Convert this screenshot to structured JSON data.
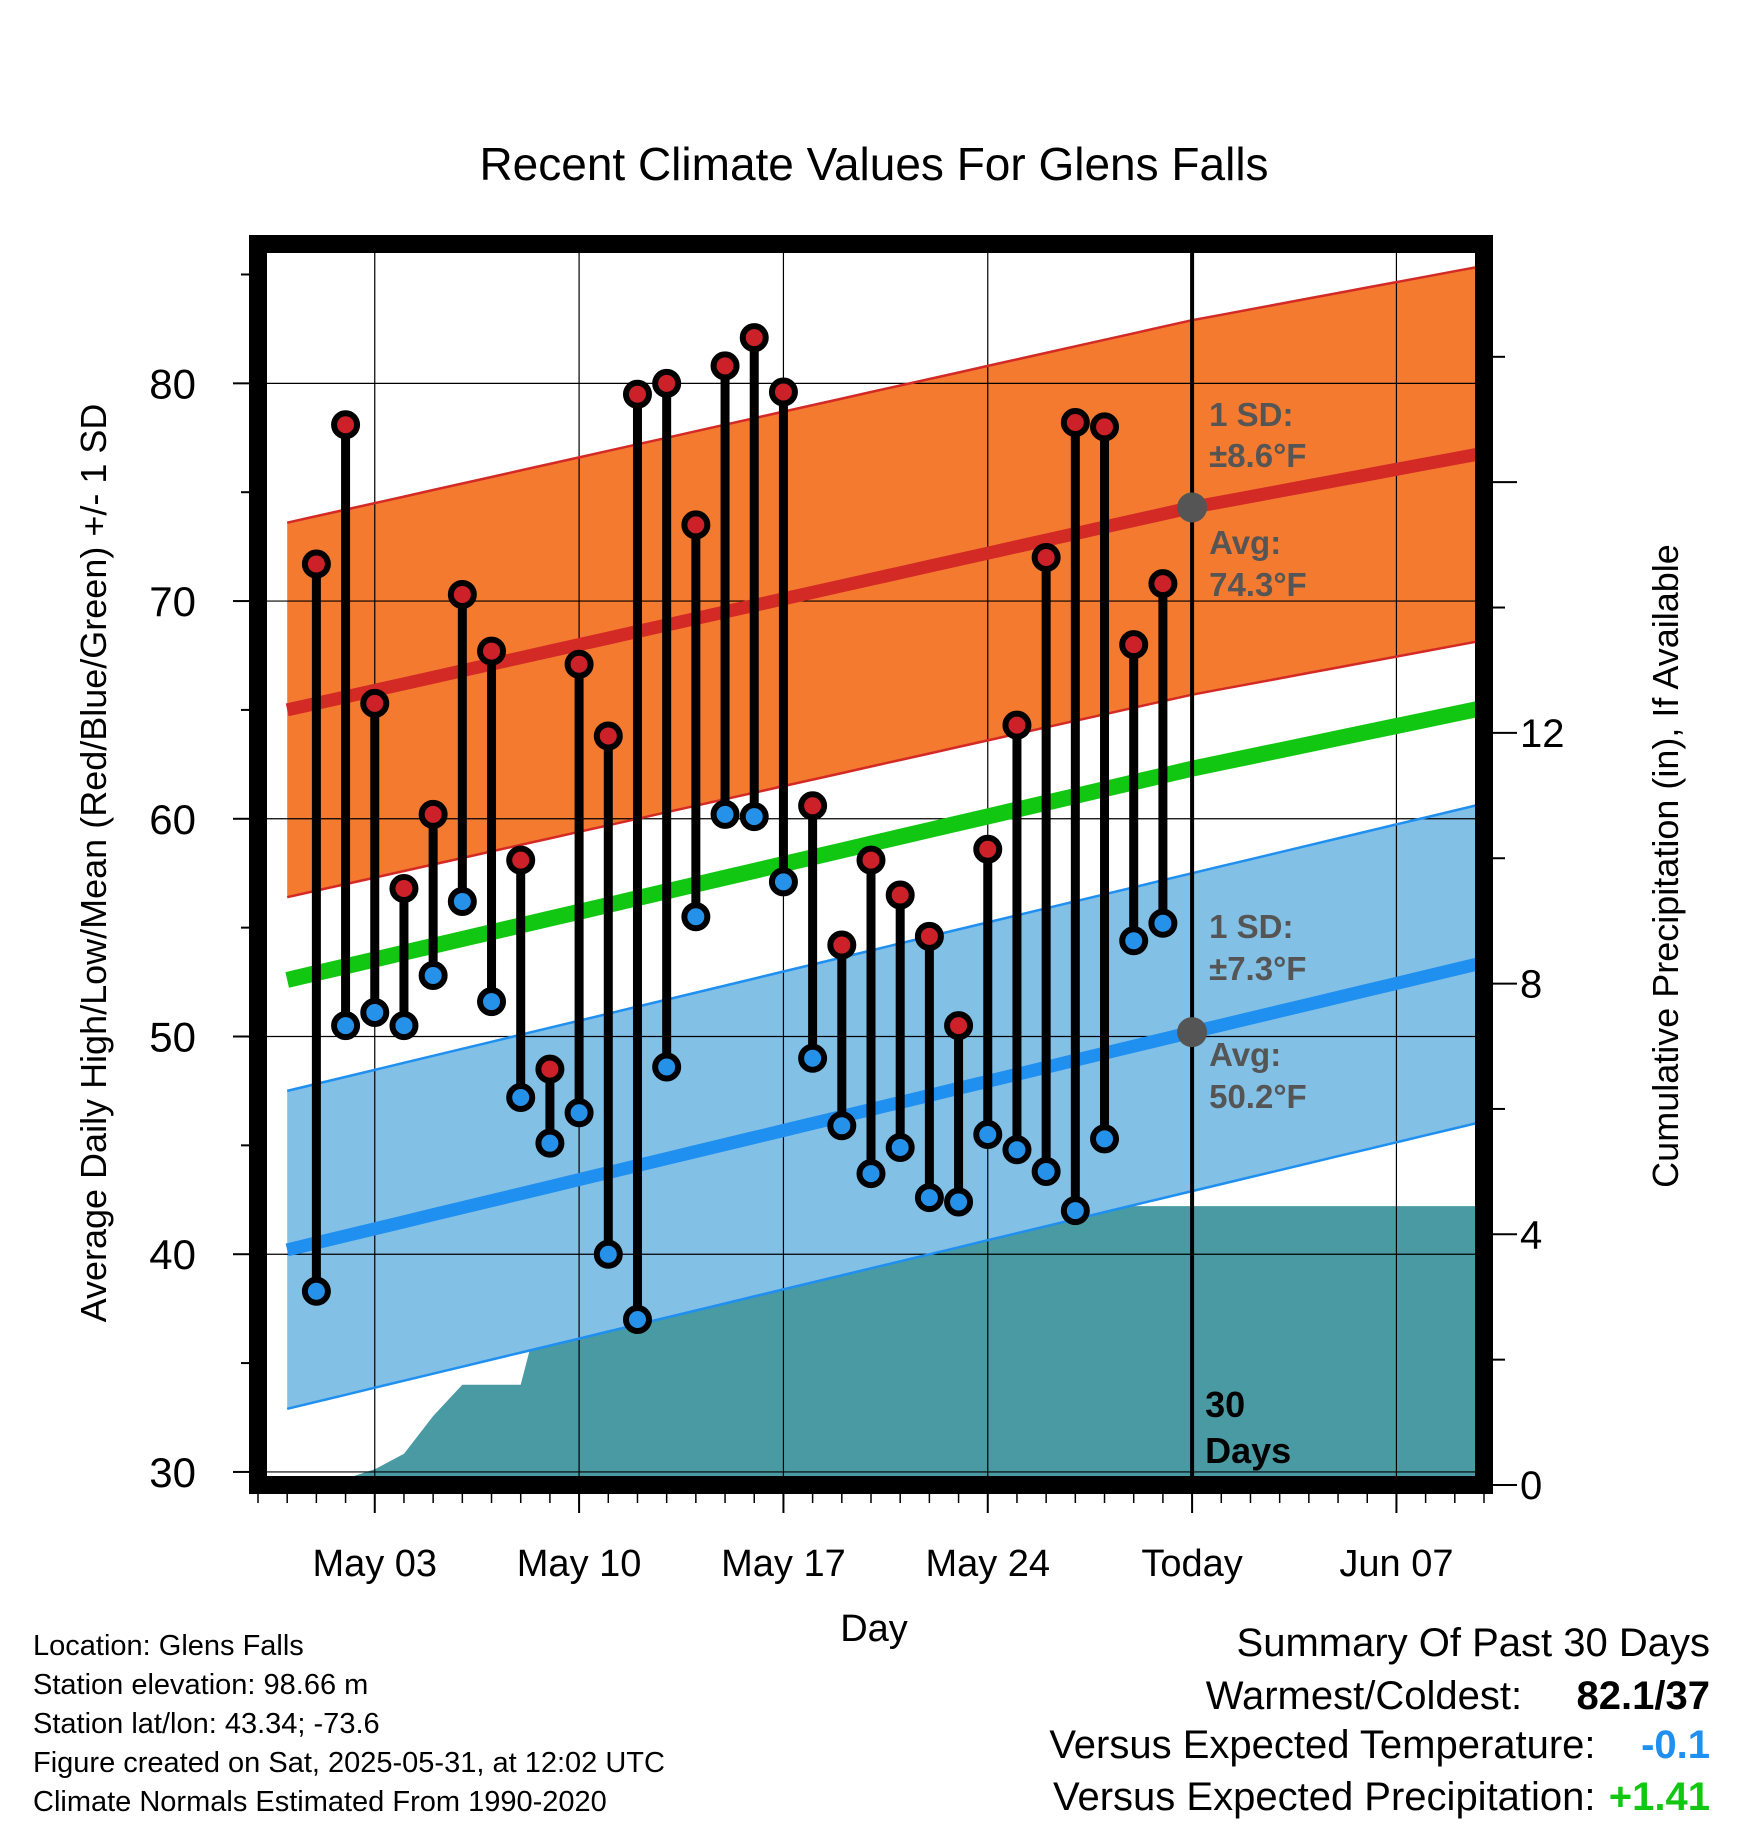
{
  "chart_data": {
    "type": "line",
    "title": "Recent Climate Values For Glens Falls",
    "xlabel": "Day",
    "ylabel": "Average Daily High/Low/Mean (Red/Blue/Green) +/- 1 SD",
    "ylabel_right": "Cumulative Precipitation (in), If Available",
    "ylim": [
      29.4,
      86.4
    ],
    "y_ticks": [
      30,
      40,
      50,
      60,
      70,
      80
    ],
    "xlim": [
      "2025-04-29",
      "2025-06-10"
    ],
    "x_tick_dates": [
      "2025-05-03",
      "2025-05-10",
      "2025-05-17",
      "2025-05-24",
      "2025-05-31",
      "2025-06-07"
    ],
    "x_tick_labels": [
      "May 03",
      "May 10",
      "May 17",
      "May 24",
      "Today",
      "Jun 07"
    ],
    "y2lim": [
      0,
      19.8
    ],
    "y2_ticks": [
      0,
      4,
      8,
      12
    ],
    "grid": true,
    "today_date": "2025-05-31",
    "today_window_label": [
      "30",
      "Days"
    ],
    "colors": {
      "high_band": "#f47a30",
      "high_line": "#d32a25",
      "low_band": "#82c0e6",
      "low_line": "#1f8ff0",
      "mean_line": "#12c712",
      "precip": "#4a9aa4",
      "high_dot": "#cc2128",
      "low_dot": "#2591e8",
      "marker": "#555555"
    },
    "normals": {
      "dates": [
        "2025-04-30",
        "2025-05-31",
        "2025-06-10"
      ],
      "high_avg": [
        65.0,
        74.3,
        76.8
      ],
      "high_sd": 8.6,
      "low_avg": [
        40.2,
        50.2,
        53.4
      ],
      "low_sd": 7.3,
      "mean_avg": [
        52.6,
        62.3,
        65.1
      ]
    },
    "annotations": {
      "high_sd_label": "1 SD:",
      "high_sd_value": "±8.6°F",
      "high_avg_label": "Avg:",
      "high_avg_value": "74.3°F",
      "low_sd_label": "1 SD:",
      "low_sd_value": "±7.3°F",
      "low_avg_label": "Avg:",
      "low_avg_value": "50.2°F"
    },
    "daily": {
      "dates": [
        "2025-05-01",
        "2025-05-02",
        "2025-05-03",
        "2025-05-04",
        "2025-05-05",
        "2025-05-06",
        "2025-05-07",
        "2025-05-08",
        "2025-05-09",
        "2025-05-10",
        "2025-05-11",
        "2025-05-12",
        "2025-05-13",
        "2025-05-14",
        "2025-05-15",
        "2025-05-16",
        "2025-05-17",
        "2025-05-18",
        "2025-05-19",
        "2025-05-20",
        "2025-05-21",
        "2025-05-22",
        "2025-05-23",
        "2025-05-24",
        "2025-05-25",
        "2025-05-26",
        "2025-05-27",
        "2025-05-28",
        "2025-05-29",
        "2025-05-30"
      ],
      "high": [
        71.7,
        78.1,
        65.3,
        56.8,
        60.2,
        70.3,
        67.7,
        58.1,
        48.5,
        67.1,
        63.8,
        79.5,
        80.0,
        73.5,
        80.8,
        82.1,
        79.6,
        60.6,
        54.2,
        58.1,
        56.5,
        54.6,
        50.5,
        58.6,
        64.3,
        72.0,
        78.2,
        78.0,
        68.0,
        70.8
      ],
      "low": [
        38.3,
        50.5,
        51.1,
        50.5,
        52.8,
        56.2,
        51.6,
        47.2,
        45.1,
        46.5,
        40.0,
        37.0,
        48.6,
        55.5,
        60.2,
        60.1,
        57.1,
        49.0,
        45.9,
        43.7,
        44.9,
        42.6,
        42.4,
        45.5,
        44.8,
        43.8,
        42.0,
        45.3,
        54.4,
        55.2
      ]
    },
    "precip": {
      "dates": [
        "2025-04-30",
        "2025-05-01",
        "2025-05-02",
        "2025-05-03",
        "2025-05-04",
        "2025-05-05",
        "2025-05-06",
        "2025-05-07",
        "2025-05-08",
        "2025-05-09",
        "2025-05-10",
        "2025-05-11",
        "2025-05-12",
        "2025-05-13",
        "2025-05-14",
        "2025-05-15",
        "2025-05-16",
        "2025-05-17",
        "2025-05-18",
        "2025-05-19",
        "2025-05-20",
        "2025-05-21",
        "2025-05-22",
        "2025-05-23",
        "2025-05-24",
        "2025-05-25",
        "2025-05-26",
        "2025-05-27",
        "2025-05-28",
        "2025-05-29",
        "2025-05-30",
        "2025-05-31",
        "2025-06-10"
      ],
      "values": [
        0.0,
        0.0,
        0.1,
        0.25,
        0.5,
        1.1,
        1.6,
        1.6,
        1.6,
        3.4,
        3.5,
        3.5,
        3.5,
        3.5,
        3.5,
        3.5,
        3.5,
        4.0,
        4.15,
        4.15,
        4.15,
        4.18,
        4.2,
        4.3,
        4.45,
        4.45,
        4.45,
        4.45,
        4.45,
        4.45,
        4.45,
        4.45,
        4.45
      ]
    }
  },
  "info": {
    "location": "Location: Glens Falls",
    "elevation": "Station elevation: 98.66 m",
    "latlon": "Station lat/lon: 43.34; -73.6",
    "created": "Figure created on Sat, 2025-05-31, at 12:02 UTC",
    "normals": "Climate Normals Estimated From 1990-2020"
  },
  "summary": {
    "title": "Summary Of Past 30 Days",
    "warm_cold_label": "Warmest/Coldest:",
    "warm_value": "82.1",
    "sep": "/",
    "cold_value": "37",
    "temp_label": "Versus Expected Temperature:",
    "temp_value": "-0.1",
    "temp_color": "#1f8ff0",
    "precip_label": "Versus Expected Precipitation:",
    "precip_value": "+1.41",
    "precip_color": "#12c712"
  }
}
